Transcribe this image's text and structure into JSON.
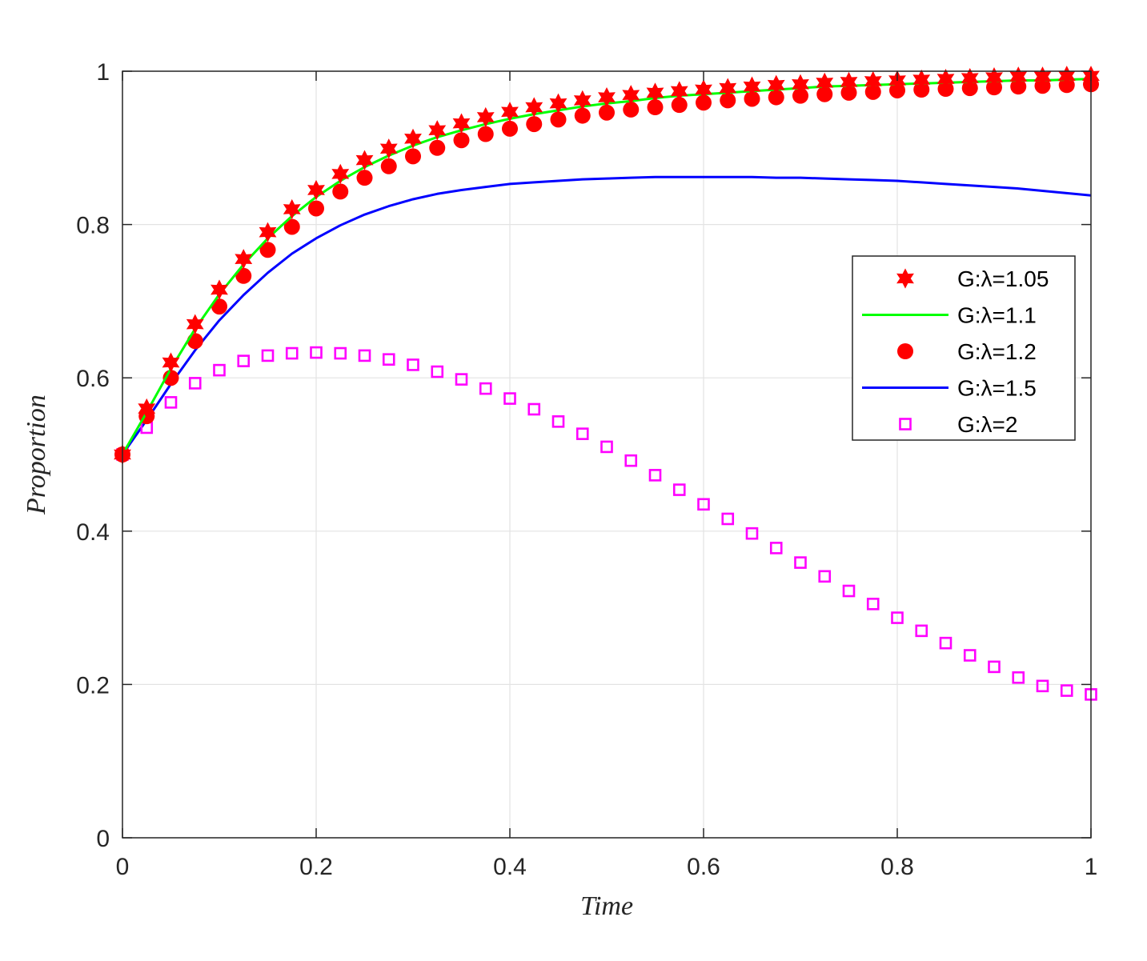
{
  "chart_data": {
    "type": "line",
    "title": "",
    "xlabel": "Time",
    "ylabel": "Proportion",
    "xlim": [
      0,
      1
    ],
    "ylim": [
      0,
      1
    ],
    "xticks": [
      0,
      0.2,
      0.4,
      0.6,
      0.8,
      1
    ],
    "xtick_labels": [
      "0",
      "0.2",
      "0.4",
      "0.6",
      "0.8",
      "1"
    ],
    "yticks": [
      0,
      0.2,
      0.4,
      0.6,
      0.8,
      1
    ],
    "ytick_labels": [
      "0",
      "0.2",
      "0.4",
      "0.6",
      "0.8",
      "1"
    ],
    "grid": true,
    "legend_position": "right-middle",
    "x": [
      0,
      0.025,
      0.05,
      0.075,
      0.1,
      0.125,
      0.15,
      0.175,
      0.2,
      0.225,
      0.25,
      0.275,
      0.3,
      0.325,
      0.35,
      0.375,
      0.4,
      0.425,
      0.45,
      0.475,
      0.5,
      0.525,
      0.55,
      0.575,
      0.6,
      0.625,
      0.65,
      0.675,
      0.7,
      0.725,
      0.75,
      0.775,
      0.8,
      0.825,
      0.85,
      0.875,
      0.9,
      0.925,
      0.95,
      0.975,
      1
    ],
    "series": [
      {
        "name": "G:λ=1.05",
        "color": "#ff0000",
        "marker": "hexagram",
        "line": false,
        "values": [
          0.5,
          0.56,
          0.62,
          0.67,
          0.715,
          0.755,
          0.79,
          0.82,
          0.845,
          0.866,
          0.884,
          0.899,
          0.912,
          0.923,
          0.932,
          0.94,
          0.947,
          0.953,
          0.958,
          0.962,
          0.966,
          0.969,
          0.972,
          0.974,
          0.976,
          0.978,
          0.98,
          0.982,
          0.983,
          0.985,
          0.986,
          0.987,
          0.988,
          0.989,
          0.99,
          0.991,
          0.992,
          0.993,
          0.993,
          0.994,
          0.994
        ]
      },
      {
        "name": "G:λ=1.1",
        "color": "#00ff00",
        "marker": "none",
        "line": true,
        "values": [
          0.5,
          0.555,
          0.612,
          0.664,
          0.709,
          0.748,
          0.782,
          0.811,
          0.836,
          0.857,
          0.875,
          0.89,
          0.903,
          0.914,
          0.923,
          0.931,
          0.938,
          0.944,
          0.949,
          0.954,
          0.958,
          0.961,
          0.965,
          0.968,
          0.97,
          0.972,
          0.974,
          0.976,
          0.978,
          0.98,
          0.981,
          0.982,
          0.983,
          0.984,
          0.985,
          0.986,
          0.987,
          0.988,
          0.988,
          0.989,
          0.99
        ]
      },
      {
        "name": "G:λ=1.2",
        "color": "#ff0000",
        "marker": "circle",
        "line": false,
        "values": [
          0.5,
          0.55,
          0.6,
          0.648,
          0.693,
          0.733,
          0.767,
          0.797,
          0.821,
          0.843,
          0.861,
          0.876,
          0.889,
          0.9,
          0.91,
          0.918,
          0.925,
          0.931,
          0.937,
          0.942,
          0.946,
          0.95,
          0.953,
          0.956,
          0.959,
          0.962,
          0.964,
          0.966,
          0.968,
          0.97,
          0.972,
          0.973,
          0.975,
          0.976,
          0.977,
          0.978,
          0.979,
          0.98,
          0.981,
          0.982,
          0.983
        ]
      },
      {
        "name": "G:λ=1.5",
        "color": "#0000ff",
        "marker": "none",
        "line": true,
        "values": [
          0.5,
          0.545,
          0.592,
          0.636,
          0.675,
          0.708,
          0.737,
          0.762,
          0.782,
          0.799,
          0.813,
          0.824,
          0.833,
          0.84,
          0.845,
          0.849,
          0.853,
          0.855,
          0.857,
          0.859,
          0.86,
          0.861,
          0.862,
          0.862,
          0.862,
          0.862,
          0.862,
          0.861,
          0.861,
          0.86,
          0.859,
          0.858,
          0.857,
          0.855,
          0.853,
          0.851,
          0.849,
          0.847,
          0.844,
          0.841,
          0.838
        ]
      },
      {
        "name": "G:λ=2",
        "color": "#ff00ff",
        "marker": "square",
        "line": false,
        "values": [
          0.5,
          0.535,
          0.568,
          0.593,
          0.61,
          0.622,
          0.629,
          0.632,
          0.633,
          0.632,
          0.629,
          0.624,
          0.617,
          0.608,
          0.598,
          0.586,
          0.573,
          0.559,
          0.543,
          0.527,
          0.51,
          0.492,
          0.473,
          0.454,
          0.435,
          0.416,
          0.397,
          0.378,
          0.359,
          0.341,
          0.322,
          0.305,
          0.287,
          0.27,
          0.254,
          0.238,
          0.223,
          0.209,
          0.198,
          0.192,
          0.187
        ]
      }
    ]
  }
}
